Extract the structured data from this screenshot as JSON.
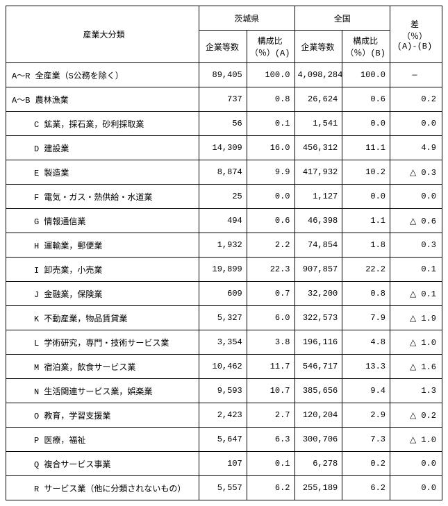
{
  "colors": {
    "border": "#000000",
    "background": "#ffffff",
    "text": "#000000"
  },
  "typography": {
    "font_family": "MS Gothic",
    "font_size_pt": 9
  },
  "headers": {
    "industry": "産業大分類",
    "ibaraki": "茨城県",
    "national": "全国",
    "count": "企業等数",
    "pct_a": "構成比（％）(A)",
    "pct_b": "構成比（％）(B)",
    "diff": "差\n（％）\n(A)-(B)"
  },
  "total_row": {
    "label": "A～R 全産業（S公務を除く）",
    "ibaraki_count": "89,405",
    "ibaraki_pct": "100.0",
    "national_count": "4,098,284",
    "national_pct": "100.0",
    "diff": "―"
  },
  "rows": [
    {
      "label": "A～B 農林漁業",
      "indent": false,
      "ibaraki_count": "737",
      "ibaraki_pct": "0.8",
      "national_count": "26,624",
      "national_pct": "0.6",
      "diff": "0.2"
    },
    {
      "label": "C 鉱業，採石業，砂利採取業",
      "indent": true,
      "ibaraki_count": "56",
      "ibaraki_pct": "0.1",
      "national_count": "1,541",
      "national_pct": "0.0",
      "diff": "0.0"
    },
    {
      "label": "D 建設業",
      "indent": true,
      "ibaraki_count": "14,309",
      "ibaraki_pct": "16.0",
      "national_count": "456,312",
      "national_pct": "11.1",
      "diff": "4.9"
    },
    {
      "label": "E 製造業",
      "indent": true,
      "ibaraki_count": "8,874",
      "ibaraki_pct": "9.9",
      "national_count": "417,932",
      "national_pct": "10.2",
      "diff": "△ 0.3"
    },
    {
      "label": "F 電気・ガス・熱供給・水道業",
      "indent": true,
      "ibaraki_count": "25",
      "ibaraki_pct": "0.0",
      "national_count": "1,127",
      "national_pct": "0.0",
      "diff": "0.0"
    },
    {
      "label": "G 情報通信業",
      "indent": true,
      "ibaraki_count": "494",
      "ibaraki_pct": "0.6",
      "national_count": "46,398",
      "national_pct": "1.1",
      "diff": "△ 0.6"
    },
    {
      "label": "H 運輸業，郵便業",
      "indent": true,
      "ibaraki_count": "1,932",
      "ibaraki_pct": "2.2",
      "national_count": "74,854",
      "national_pct": "1.8",
      "diff": "0.3"
    },
    {
      "label": "I 卸売業，小売業",
      "indent": true,
      "ibaraki_count": "19,899",
      "ibaraki_pct": "22.3",
      "national_count": "907,857",
      "national_pct": "22.2",
      "diff": "0.1"
    },
    {
      "label": "J 金融業，保険業",
      "indent": true,
      "ibaraki_count": "609",
      "ibaraki_pct": "0.7",
      "national_count": "32,200",
      "national_pct": "0.8",
      "diff": "△ 0.1"
    },
    {
      "label": "K 不動産業，物品賃貸業",
      "indent": true,
      "ibaraki_count": "5,327",
      "ibaraki_pct": "6.0",
      "national_count": "322,573",
      "national_pct": "7.9",
      "diff": "△ 1.9"
    },
    {
      "label": "L 学術研究，専門・技術サービス業",
      "indent": true,
      "ibaraki_count": "3,354",
      "ibaraki_pct": "3.8",
      "national_count": "196,116",
      "national_pct": "4.8",
      "diff": "△ 1.0"
    },
    {
      "label": "M 宿泊業，飲食サービス業",
      "indent": true,
      "ibaraki_count": "10,462",
      "ibaraki_pct": "11.7",
      "national_count": "546,717",
      "national_pct": "13.3",
      "diff": "△ 1.6"
    },
    {
      "label": "N 生活関連サービス業，娯楽業",
      "indent": true,
      "ibaraki_count": "9,593",
      "ibaraki_pct": "10.7",
      "national_count": "385,656",
      "national_pct": "9.4",
      "diff": "1.3"
    },
    {
      "label": "O 教育，学習支援業",
      "indent": true,
      "ibaraki_count": "2,423",
      "ibaraki_pct": "2.7",
      "national_count": "120,204",
      "national_pct": "2.9",
      "diff": "△ 0.2"
    },
    {
      "label": "P 医療，福祉",
      "indent": true,
      "ibaraki_count": "5,647",
      "ibaraki_pct": "6.3",
      "national_count": "300,706",
      "national_pct": "7.3",
      "diff": "△ 1.0"
    },
    {
      "label": "Q 複合サービス事業",
      "indent": true,
      "ibaraki_count": "107",
      "ibaraki_pct": "0.1",
      "national_count": "6,278",
      "national_pct": "0.2",
      "diff": "0.0"
    },
    {
      "label": "R サービス業（他に分類されないもの）",
      "indent": true,
      "ibaraki_count": "5,557",
      "ibaraki_pct": "6.2",
      "national_count": "255,189",
      "national_pct": "6.2",
      "diff": "0.0"
    }
  ]
}
